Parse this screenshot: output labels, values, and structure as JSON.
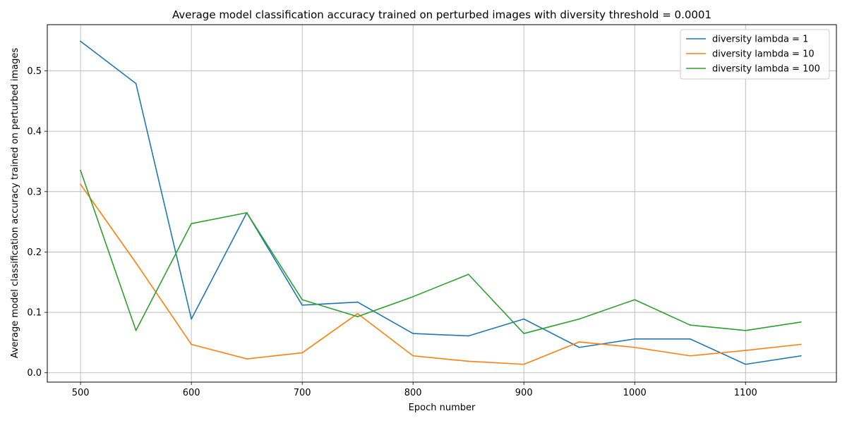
{
  "chart_data": {
    "type": "line",
    "title": "Average model classification accuracy trained on perturbed images with diversity threshold = 0.0001",
    "xlabel": "Epoch number",
    "ylabel": "Average model classification accuracy trained on perturbed images",
    "xlim": [
      470,
      1182
    ],
    "ylim": [
      -0.0155,
      0.5765
    ],
    "xticks": [
      500,
      600,
      700,
      800,
      900,
      1000,
      1100
    ],
    "yticks": [
      0.0,
      0.1,
      0.2,
      0.3,
      0.4,
      0.5
    ],
    "xtick_labels": [
      "500",
      "600",
      "700",
      "800",
      "900",
      "1000",
      "1100"
    ],
    "ytick_labels": [
      "0.0",
      "0.1",
      "0.2",
      "0.3",
      "0.4",
      "0.5"
    ],
    "grid": true,
    "legend_position": "top-right",
    "x": [
      500,
      550,
      600,
      650,
      700,
      750,
      800,
      850,
      900,
      950,
      1000,
      1050,
      1100,
      1150
    ],
    "series": [
      {
        "name": "diversity lambda = 1",
        "color": "#1f77b4",
        "values": [
          0.549,
          0.479,
          0.089,
          0.265,
          0.112,
          0.117,
          0.065,
          0.061,
          0.089,
          0.042,
          0.056,
          0.056,
          0.014,
          0.028
        ]
      },
      {
        "name": "diversity lambda = 10",
        "color": "#ff7f0e",
        "values": [
          0.312,
          0.182,
          0.047,
          0.023,
          0.033,
          0.098,
          0.028,
          0.019,
          0.014,
          0.051,
          0.042,
          0.028,
          0.037,
          0.047
        ]
      },
      {
        "name": "diversity lambda = 100",
        "color": "#2ca02c",
        "values": [
          0.335,
          0.07,
          0.247,
          0.265,
          0.121,
          0.093,
          0.126,
          0.163,
          0.065,
          0.089,
          0.121,
          0.079,
          0.07,
          0.084
        ]
      }
    ]
  }
}
